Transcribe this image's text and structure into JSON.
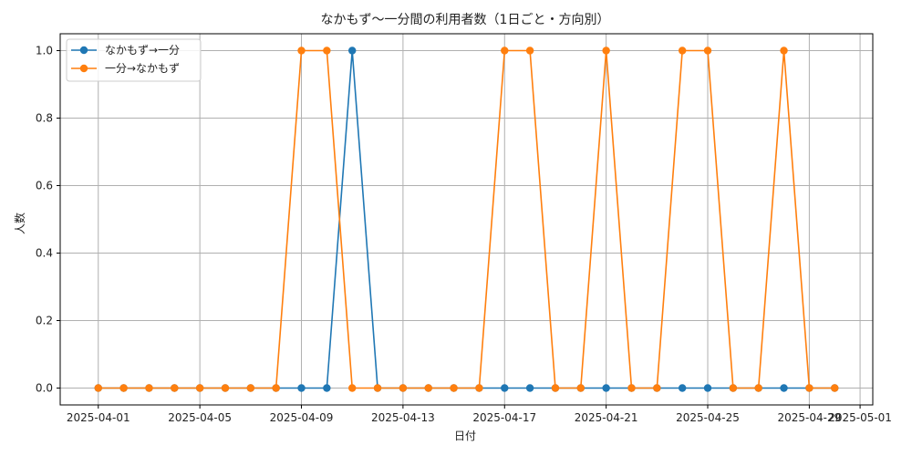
{
  "chart_data": {
    "type": "line",
    "title": "なかもず〜一分間の利用者数（1日ごと・方向別）",
    "xlabel": "日付",
    "ylabel": "人数",
    "x": [
      "2025-04-01",
      "2025-04-02",
      "2025-04-03",
      "2025-04-04",
      "2025-04-05",
      "2025-04-06",
      "2025-04-07",
      "2025-04-08",
      "2025-04-09",
      "2025-04-10",
      "2025-04-11",
      "2025-04-12",
      "2025-04-13",
      "2025-04-14",
      "2025-04-15",
      "2025-04-16",
      "2025-04-17",
      "2025-04-18",
      "2025-04-19",
      "2025-04-20",
      "2025-04-21",
      "2025-04-22",
      "2025-04-23",
      "2025-04-24",
      "2025-04-25",
      "2025-04-26",
      "2025-04-27",
      "2025-04-28",
      "2025-04-29",
      "2025-04-30"
    ],
    "x_ticks": [
      "2025-04-01",
      "2025-04-05",
      "2025-04-09",
      "2025-04-13",
      "2025-04-17",
      "2025-04-21",
      "2025-04-25",
      "2025-04-29",
      "2025-05-01"
    ],
    "y_ticks": [
      "0.0",
      "0.2",
      "0.4",
      "0.6",
      "0.8",
      "1.0"
    ],
    "ylim": [
      -0.05,
      1.05
    ],
    "xlim": [
      "2025-03-30T12:00",
      "2025-05-01T12:00"
    ],
    "grid": true,
    "legend_position": "top-left",
    "series": [
      {
        "name": "なかもず→一分",
        "color": "#1f77b4",
        "values": [
          0,
          0,
          0,
          0,
          0,
          0,
          0,
          0,
          0,
          0,
          1,
          0,
          0,
          0,
          0,
          0,
          0,
          0,
          0,
          0,
          0,
          0,
          0,
          0,
          0,
          0,
          0,
          0,
          0,
          0
        ]
      },
      {
        "name": "一分→なかもず",
        "color": "#ff7f0e",
        "values": [
          0,
          0,
          0,
          0,
          0,
          0,
          0,
          0,
          1,
          1,
          0,
          0,
          0,
          0,
          0,
          0,
          1,
          1,
          0,
          0,
          1,
          0,
          0,
          1,
          1,
          0,
          0,
          1,
          0,
          0
        ]
      }
    ]
  }
}
